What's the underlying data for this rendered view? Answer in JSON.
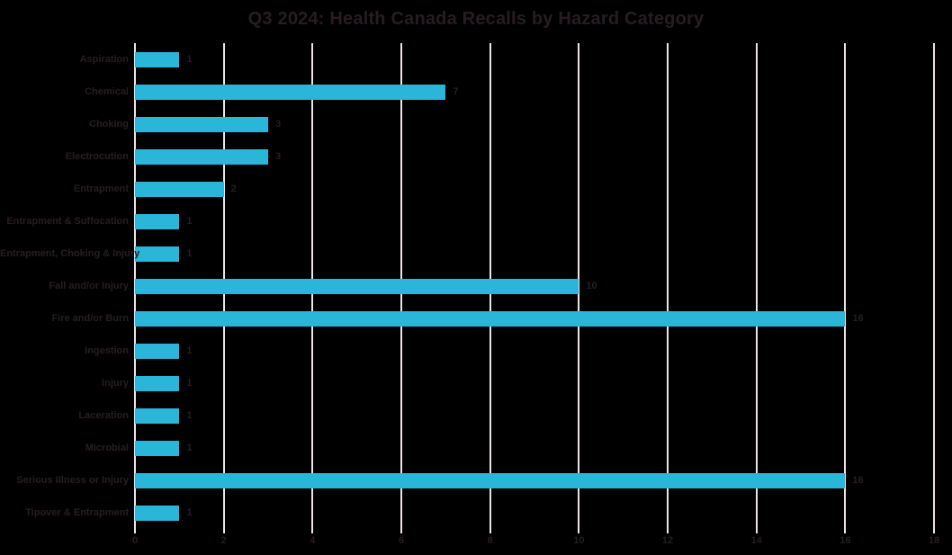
{
  "page": {
    "background_color": "#000000",
    "text_color": "#281c22",
    "accent_color": "#29b6d9",
    "gridline_color": "#ede3e7"
  },
  "chart_data": {
    "type": "bar",
    "orientation": "horizontal",
    "title": "Q3 2024: Health Canada Recalls by Hazard Category",
    "xlabel": "",
    "ylabel": "",
    "categories": [
      "Aspiration",
      "Chemical",
      "Choking",
      "Electrocution",
      "Entrapment",
      "Entrapment & Suffocation",
      "Entrapment, Choking & Injury",
      "Fall and/or Injury",
      "Fire and/or Burn",
      "Ingestion",
      "Injury",
      "Laceration",
      "Microbial",
      "Serious Illness or Injury",
      "Tipover & Entrapment"
    ],
    "values": [
      1,
      7,
      3,
      3,
      2,
      1,
      1,
      10,
      16,
      1,
      1,
      1,
      1,
      16,
      1
    ],
    "data_labels": [
      "1",
      "7",
      "3",
      "3",
      "2",
      "1",
      "1",
      "10",
      "16",
      "1",
      "1",
      "1",
      "1",
      "16",
      "1"
    ],
    "xlim": [
      0,
      18
    ],
    "xticks": [
      0,
      2,
      4,
      6,
      8,
      10,
      12,
      14,
      16,
      18
    ],
    "grid": true,
    "legend": false,
    "bar_color": "#29b6d9",
    "gridline_color": "#ede3e7",
    "text_color": "#281c22"
  }
}
